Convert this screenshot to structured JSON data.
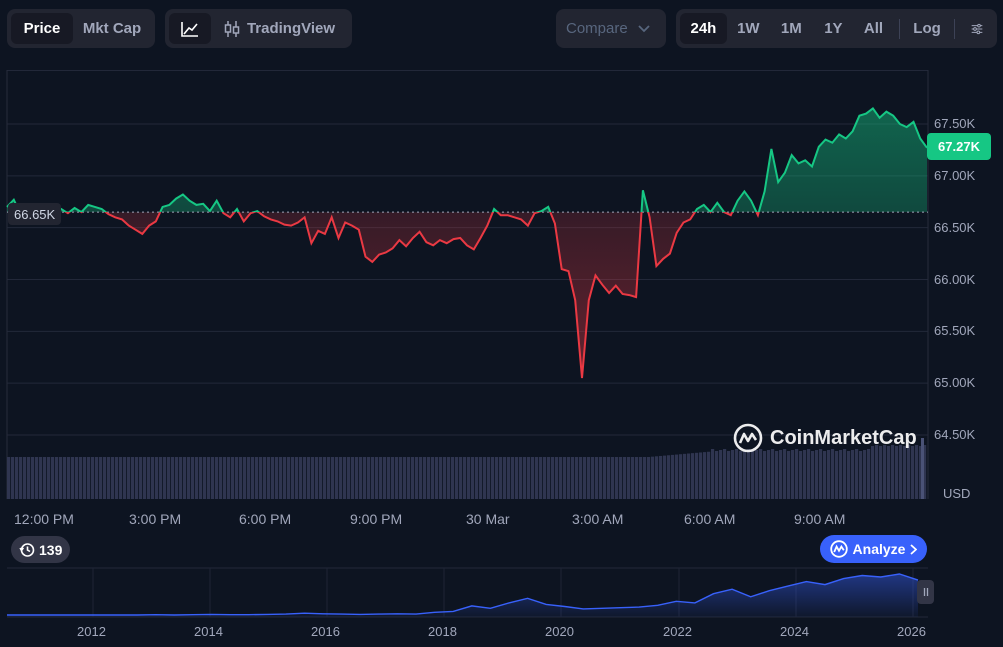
{
  "toolbar": {
    "metric_tabs": [
      {
        "label": "Price",
        "active": true
      },
      {
        "label": "Mkt Cap",
        "active": false
      }
    ],
    "chart_style": {
      "line_icon": "line-chart-icon",
      "tradingview_icon": "candlestick-icon",
      "tradingview_label": "TradingView"
    },
    "compare_label": "Compare",
    "ranges": [
      {
        "label": "24h",
        "active": true
      },
      {
        "label": "1W",
        "active": false
      },
      {
        "label": "1M",
        "active": false
      },
      {
        "label": "1Y",
        "active": false
      },
      {
        "label": "All",
        "active": false
      }
    ],
    "log_label": "Log",
    "settings_icon": "sliders-icon"
  },
  "chart": {
    "current_price_badge": "67.27K",
    "open_price_badge": "66.65K",
    "currency": "USD",
    "watermark": "CoinMarketCap",
    "history_count": "139",
    "analyze_label": "Analyze",
    "colors": {
      "up": "#16c784",
      "down": "#ea3943",
      "volume": "#2f3550",
      "navigator": "#3861fb",
      "background": "#0d1421"
    }
  },
  "chart_data": [
    {
      "type": "line",
      "x_ticks": [
        "12:00 PM",
        "3:00 PM",
        "6:00 PM",
        "9:00 PM",
        "30 Mar",
        "3:00 AM",
        "6:00 AM",
        "9:00 AM"
      ],
      "y_ticks": [
        "64.50K",
        "65.00K",
        "65.50K",
        "66.00K",
        "66.50K",
        "67.00K",
        "67.50K"
      ],
      "ylim": [
        64500,
        67700
      ],
      "baseline": 66650,
      "grid": true,
      "points": [
        [
          0,
          66700
        ],
        [
          1,
          66770
        ],
        [
          2,
          66630
        ],
        [
          3,
          66690
        ],
        [
          4,
          66620
        ],
        [
          5,
          66610
        ],
        [
          6,
          66700
        ],
        [
          7,
          66660
        ],
        [
          8,
          66680
        ],
        [
          9,
          66640
        ],
        [
          10,
          66690
        ],
        [
          11,
          66650
        ],
        [
          12,
          66720
        ],
        [
          13,
          66700
        ],
        [
          14,
          66680
        ],
        [
          15,
          66630
        ],
        [
          16,
          66600
        ],
        [
          17,
          66580
        ],
        [
          18,
          66520
        ],
        [
          19,
          66480
        ],
        [
          20,
          66440
        ],
        [
          21,
          66520
        ],
        [
          22,
          66560
        ],
        [
          23,
          66700
        ],
        [
          24,
          66720
        ],
        [
          25,
          66780
        ],
        [
          26,
          66820
        ],
        [
          27,
          66760
        ],
        [
          28,
          66720
        ],
        [
          29,
          66730
        ],
        [
          30,
          66660
        ],
        [
          31,
          66760
        ],
        [
          32,
          66640
        ],
        [
          33,
          66600
        ],
        [
          34,
          66680
        ],
        [
          35,
          66560
        ],
        [
          36,
          66640
        ],
        [
          37,
          66660
        ],
        [
          38,
          66610
        ],
        [
          39,
          66580
        ],
        [
          40,
          66560
        ],
        [
          41,
          66530
        ],
        [
          42,
          66520
        ],
        [
          43,
          66550
        ],
        [
          44,
          66600
        ],
        [
          45,
          66350
        ],
        [
          46,
          66470
        ],
        [
          47,
          66440
        ],
        [
          48,
          66600
        ],
        [
          49,
          66400
        ],
        [
          50,
          66550
        ],
        [
          51,
          66520
        ],
        [
          52,
          66480
        ],
        [
          53,
          66220
        ],
        [
          54,
          66170
        ],
        [
          55,
          66240
        ],
        [
          56,
          66260
        ],
        [
          57,
          66300
        ],
        [
          58,
          66380
        ],
        [
          59,
          66320
        ],
        [
          60,
          66400
        ],
        [
          61,
          66460
        ],
        [
          62,
          66360
        ],
        [
          63,
          66330
        ],
        [
          64,
          66380
        ],
        [
          65,
          66350
        ],
        [
          66,
          66390
        ],
        [
          67,
          66400
        ],
        [
          68,
          66330
        ],
        [
          69,
          66290
        ],
        [
          70,
          66400
        ],
        [
          71,
          66520
        ],
        [
          72,
          66680
        ],
        [
          73,
          66620
        ],
        [
          74,
          66620
        ],
        [
          75,
          66600
        ],
        [
          76,
          66580
        ],
        [
          77,
          66520
        ],
        [
          78,
          66640
        ],
        [
          79,
          66660
        ],
        [
          80,
          66700
        ],
        [
          81,
          66540
        ],
        [
          82,
          66100
        ],
        [
          83,
          66080
        ],
        [
          84,
          65800
        ],
        [
          85,
          65050
        ],
        [
          86,
          65800
        ],
        [
          87,
          66040
        ],
        [
          88,
          65950
        ],
        [
          89,
          65870
        ],
        [
          90,
          65940
        ],
        [
          91,
          65860
        ],
        [
          92,
          65850
        ],
        [
          93,
          65830
        ],
        [
          94,
          66860
        ],
        [
          95,
          66600
        ],
        [
          96,
          66130
        ],
        [
          97,
          66200
        ],
        [
          98,
          66250
        ],
        [
          99,
          66450
        ],
        [
          100,
          66550
        ],
        [
          101,
          66580
        ],
        [
          102,
          66680
        ],
        [
          103,
          66720
        ],
        [
          104,
          66650
        ],
        [
          105,
          66740
        ],
        [
          106,
          66650
        ],
        [
          107,
          66620
        ],
        [
          108,
          66760
        ],
        [
          109,
          66850
        ],
        [
          110,
          66760
        ],
        [
          111,
          66620
        ],
        [
          112,
          66850
        ],
        [
          113,
          67260
        ],
        [
          114,
          66940
        ],
        [
          115,
          67030
        ],
        [
          116,
          67200
        ],
        [
          117,
          67120
        ],
        [
          118,
          67150
        ],
        [
          119,
          67090
        ],
        [
          120,
          67280
        ],
        [
          121,
          67350
        ],
        [
          122,
          67320
        ],
        [
          123,
          67400
        ],
        [
          124,
          67360
        ],
        [
          125,
          67430
        ],
        [
          126,
          67580
        ],
        [
          127,
          67600
        ],
        [
          128,
          67650
        ],
        [
          129,
          67560
        ],
        [
          130,
          67620
        ],
        [
          131,
          67580
        ],
        [
          132,
          67500
        ],
        [
          133,
          67470
        ],
        [
          134,
          67520
        ],
        [
          135,
          67360
        ],
        [
          136,
          67270
        ]
      ]
    },
    {
      "type": "area",
      "x_ticks": [
        "2012",
        "2014",
        "2016",
        "2018",
        "2020",
        "2022",
        "2024",
        "2026"
      ],
      "values": [
        0,
        0,
        0,
        0,
        0,
        0,
        0,
        0,
        1,
        0,
        1,
        2,
        1,
        1,
        2,
        3,
        6,
        4,
        3,
        2,
        3,
        4,
        3,
        9,
        12,
        30,
        22,
        40,
        55,
        35,
        28,
        20,
        22,
        24,
        26,
        32,
        45,
        40,
        70,
        85,
        60,
        80,
        95,
        110,
        100,
        120,
        130,
        125,
        135,
        115
      ]
    }
  ]
}
